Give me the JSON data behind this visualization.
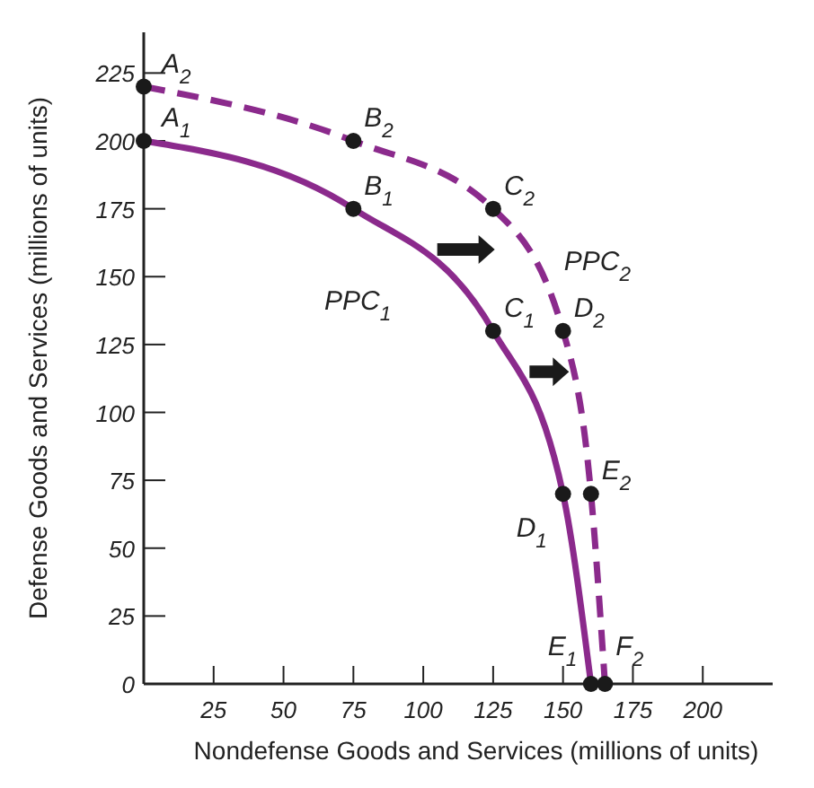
{
  "chart_data": {
    "type": "line",
    "xlabel": "Nondefense Goods and Services (millions of units)",
    "ylabel": "Defense Goods and Services (millions of units)",
    "xlim": [
      0,
      225
    ],
    "xticks": [
      25,
      50,
      75,
      100,
      125,
      150,
      175,
      200
    ],
    "ylim": [
      0,
      240
    ],
    "yticks": [
      0,
      25,
      50,
      75,
      100,
      125,
      150,
      175,
      200,
      225
    ],
    "grid": false,
    "marker": "circle",
    "series": [
      {
        "name": "PPC$_{1}$",
        "color": "#8b2a8c",
        "line_style": "solid",
        "x": [
          0,
          75,
          125,
          150,
          160
        ],
        "values": [
          200,
          175,
          130,
          70,
          0
        ]
      },
      {
        "name": "PPC$_{2}$",
        "color": "#8b2a8c",
        "line_style": "dashed",
        "x": [
          0,
          75,
          125,
          150,
          160,
          165
        ],
        "values": [
          220,
          200,
          175,
          130,
          70,
          0
        ]
      }
    ],
    "annotations": [
      {
        "text": "A$_{1}$",
        "x": 0,
        "y": 200
      },
      {
        "text": "B$_{1}$",
        "x": 75,
        "y": 175
      },
      {
        "text": "C$_{1}$",
        "x": 125,
        "y": 130
      },
      {
        "text": "D$_{1}$",
        "x": 150,
        "y": 70
      },
      {
        "text": "E$_{1}$",
        "x": 160,
        "y": 0
      },
      {
        "text": "A$_{2}$",
        "x": 0,
        "y": 220
      },
      {
        "text": "B$_{2}$",
        "x": 75,
        "y": 200
      },
      {
        "text": "C$_{2}$",
        "x": 125,
        "y": 175
      },
      {
        "text": "D$_{2}$",
        "x": 150,
        "y": 130
      },
      {
        "text": "E$_{2}$",
        "x": 160,
        "y": 70
      },
      {
        "text": "F$_{2}$",
        "x": 165,
        "y": 0
      }
    ]
  }
}
